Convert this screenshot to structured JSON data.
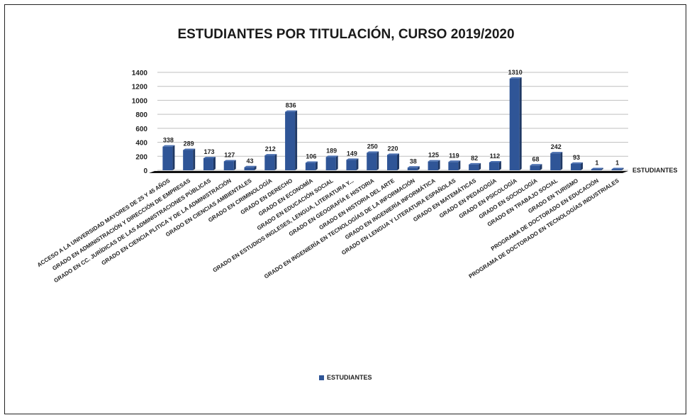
{
  "chart_data": {
    "type": "bar",
    "title": "ESTUDIANTES POR TITULACIÓN, CURSO 2019/2020",
    "ylim": [
      0,
      1400
    ],
    "yticks": [
      0,
      200,
      400,
      600,
      800,
      1000,
      1200,
      1400
    ],
    "grid": true,
    "legend": "bottom",
    "series_color": "#2f5597",
    "categories": [
      "ACCESO A LA UNIVERSIDAD MAYORES DE 25 Y 45 AÑOS",
      "GRADO EN ADMINISTRACIÓN Y DIRECCIÓN DE EMPRESAS",
      "GRADO EN CC. JURÍDICAS DE LAS ADMINISTRACIONES PÚBLICAS",
      "GRADO EN CIENCIA PLITICA Y DE LA ADMINISTRACIÓN",
      "GRADO EN CIENCIAS AMBIENTALES",
      "GRADO EN CRIMINOLOGÍA",
      "GRADO EN DERECHO",
      "GRADO EN ECONOMÍA",
      "GRADO EN EDUCACIÓN SOCIAL",
      "GRADO EN ESTUDIOS INGLESES, LENGUA, LITERATURA Y...",
      "GRADO EN GEOGRAFÍA E HISTORIA",
      "GRADO EN HISTORIA DEL ARTE",
      "GRADO EN INGENIERÍA EN TECNOLOGÍAS DE LA INFORMACIÓN",
      "GRADO EN INGENIERÍA INFORMÁTICA",
      "GRADO EN LENGUA Y LITERATURA ESPAÑOLAS",
      "GRADO EN MATEMÁTICAS",
      "GRADO EN PEDAGOGÍA",
      "GRADO EN PSICOLOGÍA",
      "GRADO EN SOCIOLOGÍA",
      "GRADO EN TRABAJO SOCIAL",
      "GRADO EN TURISMO",
      "PROGRAMA DE DOCTORADO EN EDUCACIÓN",
      "PROGRAMA DE DOCTORADO EN TECNOLOGÍAS INDUSTRIALES"
    ],
    "series": [
      {
        "name": "ESTUDIANTES",
        "values": [
          338,
          289,
          173,
          127,
          43,
          212,
          836,
          106,
          189,
          149,
          250,
          220,
          38,
          125,
          119,
          82,
          112,
          1310,
          68,
          242,
          93,
          1,
          1
        ]
      }
    ]
  }
}
